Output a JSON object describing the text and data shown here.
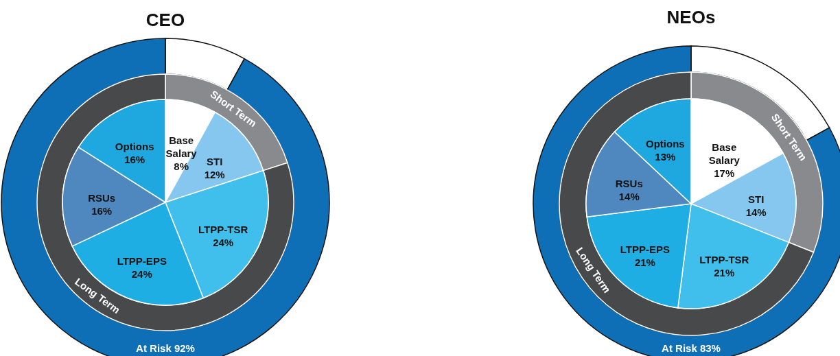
{
  "chart_data": [
    {
      "type": "pie",
      "title": "CEO",
      "categories": [
        "Base Salary",
        "STI",
        "LTPP-TSR",
        "LTPP-EPS",
        "RSUs",
        "Options"
      ],
      "values": [
        8,
        12,
        24,
        24,
        16,
        16
      ],
      "value_labels": [
        "8%",
        "12%",
        "24%",
        "24%",
        "16%",
        "16%"
      ],
      "colors": [
        "#ffffff",
        "#85c7ef",
        "#41bfec",
        "#1eaee3",
        "#4f88bf",
        "#1fa8e0"
      ]
    },
    {
      "type": "donut",
      "categories": [
        "Short Term",
        "Long Term"
      ],
      "values": [
        20,
        80
      ],
      "colors": [
        "#898a8d",
        "#48494b"
      ]
    },
    {
      "type": "donut",
      "categories": [
        null,
        "At Risk"
      ],
      "values": [
        8,
        92
      ],
      "value_labels": [
        null,
        "92%"
      ],
      "colors": [
        "#ffffff",
        "#0f6fb6"
      ]
    },
    {
      "type": "pie",
      "title": "NEOs",
      "categories": [
        "Base Salary",
        "STI",
        "LTPP-TSR",
        "LTPP-EPS",
        "RSUs",
        "Options"
      ],
      "values": [
        17,
        14,
        21,
        21,
        14,
        13
      ],
      "value_labels": [
        "17%",
        "14%",
        "21%",
        "21%",
        "14%",
        "13%"
      ],
      "colors": [
        "#ffffff",
        "#85c7ef",
        "#41bfec",
        "#1eaee3",
        "#4f88bf",
        "#1fa8e0"
      ]
    },
    {
      "type": "donut",
      "categories": [
        "Short Term",
        "Long Term"
      ],
      "values": [
        31,
        69
      ],
      "colors": [
        "#898a8d",
        "#48494b"
      ]
    },
    {
      "type": "donut",
      "categories": [
        null,
        "At Risk"
      ],
      "values": [
        17,
        83
      ],
      "value_labels": [
        null,
        "83%"
      ],
      "colors": [
        "#ffffff",
        "#0f6fb6"
      ]
    }
  ]
}
